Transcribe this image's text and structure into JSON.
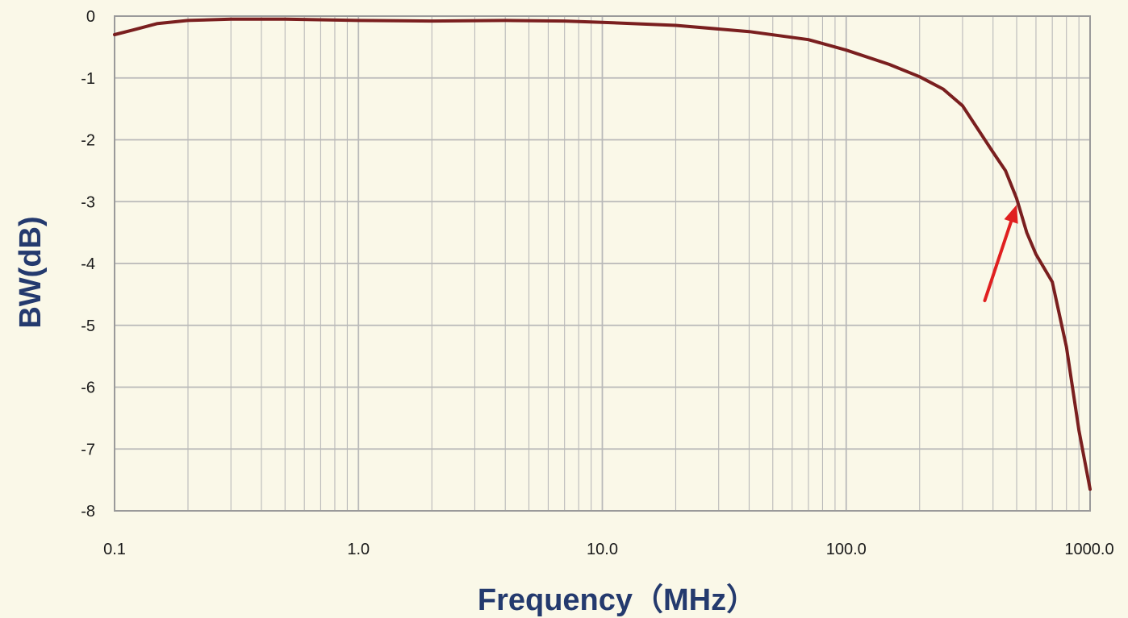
{
  "chart_data": {
    "type": "line",
    "title": "",
    "xlabel": "Frequency（MHz）",
    "ylabel": "BW(dB)",
    "x_scale": "log",
    "xlim": [
      0.1,
      1000
    ],
    "ylim": [
      -8,
      0
    ],
    "grid": true,
    "legend": "none",
    "x_ticks": [
      0.1,
      1,
      10,
      100,
      1000
    ],
    "x_tick_labels": [
      "0.1",
      "1.0",
      "10.0",
      "100.0",
      "1000.0"
    ],
    "y_ticks": [
      0,
      -1,
      -2,
      -3,
      -4,
      -5,
      -6,
      -7,
      -8
    ],
    "y_tick_labels": [
      "0",
      "-1",
      "-2",
      "-3",
      "-4",
      "-5",
      "-6",
      "-7",
      "-8"
    ],
    "series": [
      {
        "color": "#7a1f1f",
        "x": [
          0.1,
          0.12,
          0.15,
          0.2,
          0.3,
          0.5,
          1,
          2,
          4,
          7,
          10,
          20,
          40,
          70,
          100,
          150,
          200,
          250,
          300,
          400,
          450,
          500,
          550,
          600,
          700,
          800,
          900,
          1000
        ],
        "y": [
          -0.3,
          -0.22,
          -0.12,
          -0.07,
          -0.05,
          -0.05,
          -0.07,
          -0.08,
          -0.07,
          -0.08,
          -0.1,
          -0.15,
          -0.25,
          -0.38,
          -0.55,
          -0.78,
          -0.98,
          -1.18,
          -1.45,
          -2.2,
          -2.5,
          -2.95,
          -3.5,
          -3.85,
          -4.3,
          -5.35,
          -6.7,
          -7.65
        ]
      }
    ],
    "annotations": [
      {
        "type": "arrow",
        "color": "#e02020",
        "from": {
          "x": 370,
          "y": -4.6
        },
        "to": {
          "x": 500,
          "y": -3.05
        }
      }
    ]
  },
  "colors": {
    "background": "#faf8e8",
    "grid": "#b9b9b9",
    "axis_frame": "#9a9a9a",
    "curve": "#7a1f1f",
    "arrow": "#e02020",
    "axis_title": "#243a6e",
    "tick_text": "#1b1b1b"
  }
}
